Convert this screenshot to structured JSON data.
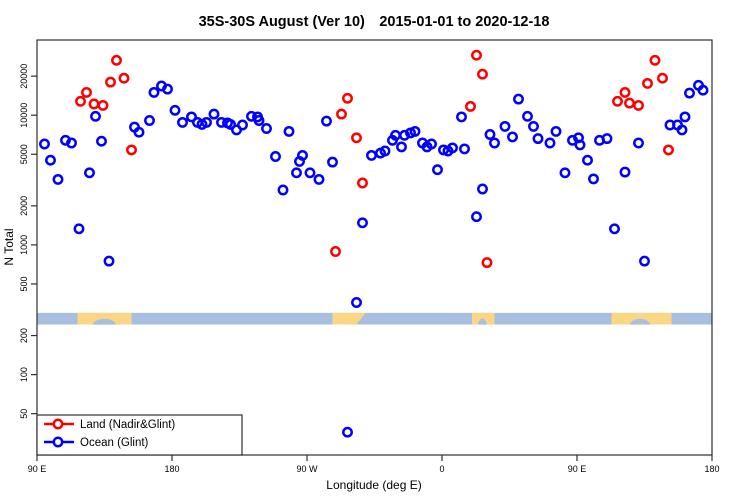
{
  "title": "35S-30S August (Ver 10) 2015-01-01 to 2020-12-18",
  "chart_data": {
    "type": "scatter",
    "title": "35S-30S August (Ver 10) 2015-01-01 to 2020-12-18",
    "xlabel": "Longitude (deg E)",
    "ylabel": "N Total",
    "y_scale": "log",
    "ylim": [
      24,
      38000
    ],
    "xlim_deg": [
      90,
      540
    ],
    "grid": "off",
    "legend_position": "bottom-left",
    "x_ticks": [
      {
        "deg": 90,
        "label": "90 E"
      },
      {
        "deg": 180,
        "label": "180"
      },
      {
        "deg": 270,
        "label": "90 W"
      },
      {
        "deg": 360,
        "label": "0"
      },
      {
        "deg": 450,
        "label": "90 E"
      },
      {
        "deg": 540,
        "label": "180"
      }
    ],
    "y_ticks": [
      50,
      100,
      200,
      500,
      1000,
      2000,
      5000,
      10000,
      20000
    ],
    "series": [
      {
        "name": "Land (Nadir&Glint)",
        "color": "#ff0000",
        "points": [
          [
            119,
            12800
          ],
          [
            123,
            15000
          ],
          [
            128,
            12200
          ],
          [
            134,
            11900
          ],
          [
            139,
            18000
          ],
          [
            143,
            26500
          ],
          [
            148,
            19300
          ],
          [
            153,
            5400
          ],
          [
            289,
            890
          ],
          [
            293,
            10200
          ],
          [
            297,
            13500
          ],
          [
            303,
            6700
          ],
          [
            307,
            3000
          ],
          [
            379,
            11700
          ],
          [
            383,
            29000
          ],
          [
            387,
            20700
          ],
          [
            390,
            730
          ],
          [
            477,
            12800
          ],
          [
            482,
            15000
          ],
          [
            485,
            12400
          ],
          [
            491,
            11900
          ],
          [
            497,
            17600
          ],
          [
            502,
            26500
          ],
          [
            507,
            19300
          ],
          [
            511,
            5400
          ]
        ]
      },
      {
        "name": "Ocean (Glint)",
        "color": "#0000ff",
        "points": [
          [
            95,
            6000
          ],
          [
            99,
            4500
          ],
          [
            104,
            3200
          ],
          [
            109,
            6400
          ],
          [
            113,
            6100
          ],
          [
            118,
            1330
          ],
          [
            125,
            3600
          ],
          [
            129,
            9800
          ],
          [
            133,
            6300
          ],
          [
            138,
            750
          ],
          [
            155,
            8100
          ],
          [
            158,
            7400
          ],
          [
            165,
            9100
          ],
          [
            168,
            15000
          ],
          [
            173,
            16800
          ],
          [
            177,
            15900
          ],
          [
            182,
            10900
          ],
          [
            187,
            8800
          ],
          [
            193,
            9700
          ],
          [
            197,
            8800
          ],
          [
            200,
            8500
          ],
          [
            203,
            8800
          ],
          [
            208,
            10200
          ],
          [
            213,
            8800
          ],
          [
            217,
            8700
          ],
          [
            219,
            8500
          ],
          [
            223,
            7700
          ],
          [
            227,
            8400
          ],
          [
            233,
            9800
          ],
          [
            237,
            9700
          ],
          [
            238,
            9100
          ],
          [
            243,
            7900
          ],
          [
            249,
            4800
          ],
          [
            254,
            2650
          ],
          [
            258,
            7500
          ],
          [
            263,
            3600
          ],
          [
            265,
            4400
          ],
          [
            267,
            4900
          ],
          [
            272,
            3600
          ],
          [
            278,
            3200
          ],
          [
            283,
            9000
          ],
          [
            287,
            4350
          ],
          [
            297,
            36
          ],
          [
            303,
            360
          ],
          [
            307,
            1480
          ],
          [
            313,
            4900
          ],
          [
            319,
            5100
          ],
          [
            322,
            5300
          ],
          [
            327,
            6400
          ],
          [
            329,
            7000
          ],
          [
            333,
            5700
          ],
          [
            335,
            7000
          ],
          [
            339,
            7300
          ],
          [
            342,
            7500
          ],
          [
            347,
            6100
          ],
          [
            350,
            5700
          ],
          [
            353,
            6000
          ],
          [
            357,
            3800
          ],
          [
            361,
            5400
          ],
          [
            364,
            5300
          ],
          [
            367,
            5600
          ],
          [
            373,
            9700
          ],
          [
            375,
            5500
          ],
          [
            383,
            1650
          ],
          [
            387,
            2700
          ],
          [
            392,
            7100
          ],
          [
            395,
            6100
          ],
          [
            402,
            8200
          ],
          [
            407,
            6800
          ],
          [
            411,
            13300
          ],
          [
            417,
            9800
          ],
          [
            421,
            8200
          ],
          [
            424,
            6600
          ],
          [
            432,
            6100
          ],
          [
            436,
            7500
          ],
          [
            442,
            3600
          ],
          [
            447,
            6400
          ],
          [
            451,
            6700
          ],
          [
            452,
            5900
          ],
          [
            457,
            4500
          ],
          [
            461,
            3230
          ],
          [
            465,
            6400
          ],
          [
            470,
            6600
          ],
          [
            475,
            1330
          ],
          [
            482,
            3640
          ],
          [
            491,
            6100
          ],
          [
            495,
            750
          ],
          [
            512,
            8400
          ],
          [
            517,
            8400
          ],
          [
            520,
            7700
          ],
          [
            522,
            9700
          ],
          [
            525,
            14800
          ],
          [
            531,
            17000
          ],
          [
            534,
            15600
          ]
        ]
      }
    ],
    "map_band": {
      "description": "land-ocean reference strip for 35S-30S latitude band",
      "value_top": 300,
      "value_bottom": 243,
      "ocean_color": "#a9bfdf",
      "land_color": "#fbd684",
      "land_patches": [
        {
          "from": 117,
          "to": 153,
          "notches": [
            [
              127,
              143
            ]
          ]
        },
        {
          "from": 287,
          "to": 303,
          "to_top": 309
        },
        {
          "from": 380,
          "to": 395,
          "notches": [
            [
              384,
              390
            ]
          ]
        },
        {
          "from": 473,
          "to": 513,
          "notches": [
            [
              485,
              499
            ]
          ]
        }
      ]
    }
  },
  "colors": {
    "land_series": "#ff0000",
    "ocean_series": "#0000ff",
    "axis": "#2f2f2f",
    "background": "#ffffff"
  }
}
